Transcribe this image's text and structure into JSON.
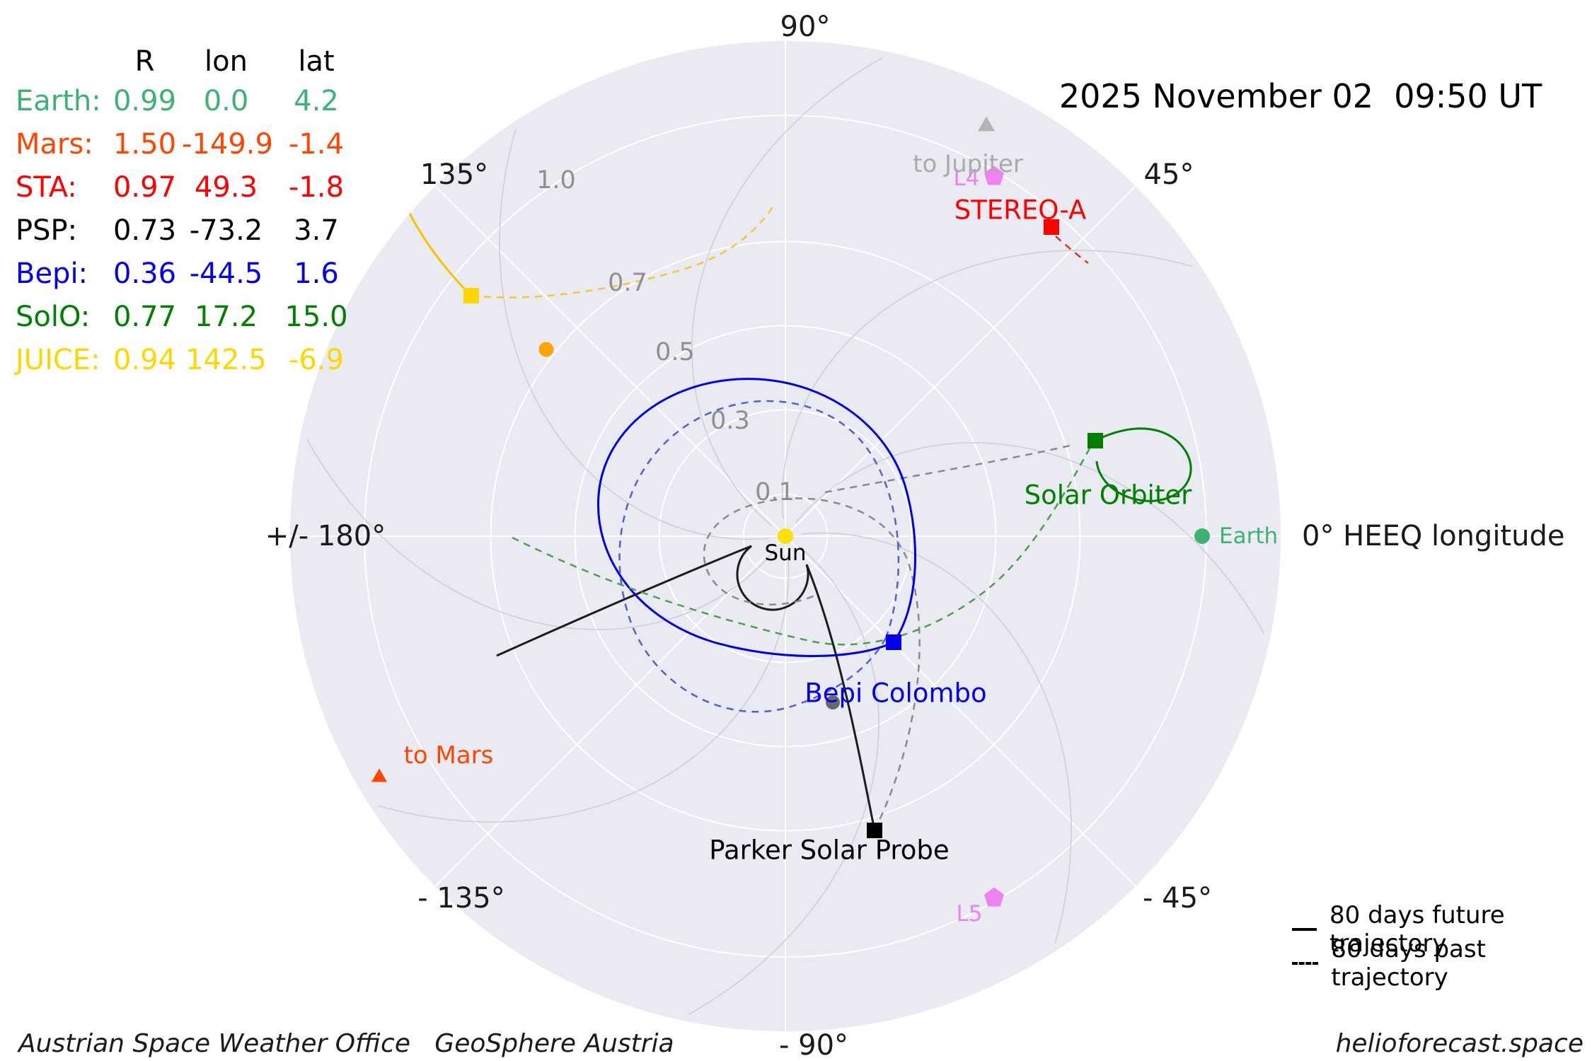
{
  "header": {
    "datetime": "2025 November 02  09:50 UT"
  },
  "table": {
    "col_headers": [
      "R",
      "lon",
      "lat"
    ],
    "rows": [
      {
        "name": "Earth:",
        "r": "0.99",
        "lon": "0.0",
        "lat": "4.2",
        "color": "#3cb371"
      },
      {
        "name": "Mars:",
        "r": "1.50",
        "lon": "-149.9",
        "lat": "-1.4",
        "color": "#ff4500"
      },
      {
        "name": "STA:",
        "r": "0.97",
        "lon": "49.3",
        "lat": "-1.8",
        "color": "#ff0000"
      },
      {
        "name": "PSP:",
        "r": "0.73",
        "lon": "-73.2",
        "lat": "3.7",
        "color": "#000000"
      },
      {
        "name": "Bepi:",
        "r": "0.36",
        "lon": "-44.5",
        "lat": "1.6",
        "color": "#0000ee"
      },
      {
        "name": "SolO:",
        "r": "0.77",
        "lon": "17.2",
        "lat": "15.0",
        "color": "#008000"
      },
      {
        "name": "JUICE:",
        "r": "0.94",
        "lon": "142.5",
        "lat": "-6.9",
        "color": "#ffd700"
      }
    ]
  },
  "polar": {
    "angle_labels": [
      "90°",
      "135°",
      "45°",
      "+/- 180°",
      "0° HEEQ longitude",
      "- 135°",
      "- 45°",
      "- 90°"
    ],
    "radial_labels": [
      "1.0",
      "0.7",
      "0.5",
      "0.3",
      "0.1"
    ]
  },
  "objects": {
    "sun": "Sun",
    "earth": "Earth",
    "stereo_a": "STEREO-A",
    "solar_orbiter": "Solar Orbiter",
    "bepi_colombo": "Bepi Colombo",
    "parker_solar_probe": "Parker Solar Probe",
    "l4": "L4",
    "l5": "L5",
    "to_jupiter": "to Jupiter",
    "to_mars": "to Mars"
  },
  "legend": {
    "future": "80 days future trajectory",
    "past": "80 days past trajectory"
  },
  "footer": {
    "left": "Austrian Space Weather Office   GeoSphere Austria",
    "right": "helioforecast.space"
  },
  "colors": {
    "plot_background": "#eaeaf2",
    "grid": "#ffffff",
    "parker_spirals": "#cdcdd6",
    "earth": "#3cb371",
    "mars": "#ff4500",
    "stereo_a": "#ff0000",
    "psp": "#000000",
    "bepi": "#0000ee",
    "solo": "#008000",
    "juice": "#ffd700",
    "venus": "#ffa500",
    "mercury": "#696969",
    "sun": "#ffdf00",
    "lagrange_points": "#ee82ee",
    "to_jupiter": "#b3b3b3"
  },
  "chart_data": {
    "type": "scatter",
    "projection": "polar",
    "title": "2025 November 02  09:50 UT",
    "r_units": "AU",
    "lon_units": "deg HEEQ longitude",
    "r_ticks": [
      0.1,
      0.3,
      0.5,
      0.7,
      1.0
    ],
    "theta_tick_labels_deg": [
      90,
      135,
      45,
      180,
      0,
      -135,
      -45,
      -90
    ],
    "grid": true,
    "points": [
      {
        "name": "Sun",
        "r": 0.0,
        "lon": 0.0,
        "lat": null,
        "marker": "circle",
        "color": "#ffdf00"
      },
      {
        "name": "Earth",
        "r": 0.99,
        "lon": 0.0,
        "lat": 4.2,
        "marker": "circle",
        "color": "#3cb371"
      },
      {
        "name": "Mars",
        "r": 1.5,
        "lon": -149.9,
        "lat": -1.4,
        "marker": "triangle",
        "color": "#ff4500"
      },
      {
        "name": "STEREO-A",
        "r": 0.97,
        "lon": 49.3,
        "lat": -1.8,
        "marker": "square",
        "color": "#ff0000"
      },
      {
        "name": "Parker Solar Probe",
        "r": 0.73,
        "lon": -73.2,
        "lat": 3.7,
        "marker": "square",
        "color": "#000000"
      },
      {
        "name": "Bepi Colombo",
        "r": 0.36,
        "lon": -44.5,
        "lat": 1.6,
        "marker": "square",
        "color": "#0000ee"
      },
      {
        "name": "Solar Orbiter",
        "r": 0.77,
        "lon": 17.2,
        "lat": 15.0,
        "marker": "square",
        "color": "#008000"
      },
      {
        "name": "JUICE",
        "r": 0.94,
        "lon": 142.5,
        "lat": -6.9,
        "marker": "square",
        "color": "#ffd700"
      },
      {
        "name": "Venus",
        "r": 0.72,
        "lon": 142.0,
        "lat": null,
        "marker": "circle",
        "color": "#ffa500"
      },
      {
        "name": "Mercury",
        "r": 0.41,
        "lon": -74.0,
        "lat": null,
        "marker": "circle",
        "color": "#696969"
      },
      {
        "name": "L4",
        "r": 0.99,
        "lon": 60.0,
        "lat": null,
        "marker": "pentagon",
        "color": "#ee82ee"
      },
      {
        "name": "L5",
        "r": 0.99,
        "lon": -60.0,
        "lat": null,
        "marker": "pentagon",
        "color": "#ee82ee"
      },
      {
        "name": "to Jupiter",
        "r": 1.09,
        "lon": 64.0,
        "lat": null,
        "marker": "triangle",
        "color": "#b3b3b3"
      }
    ],
    "legend_entries": [
      "80 days future trajectory (solid)",
      "80 days past trajectory (dashed)"
    ]
  }
}
